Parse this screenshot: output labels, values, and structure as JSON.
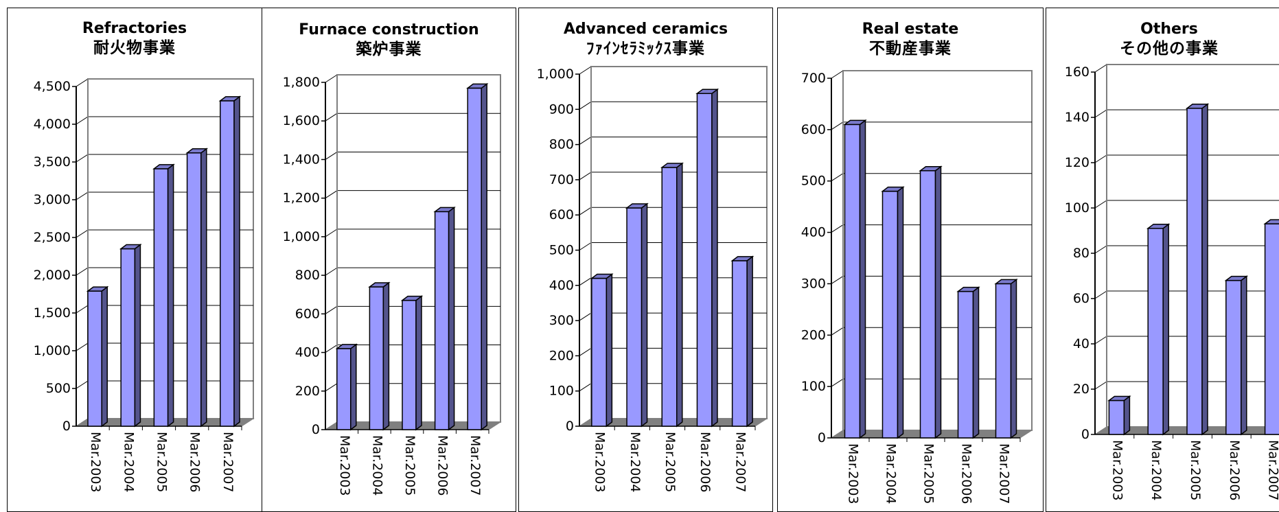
{
  "chart_data": [
    {
      "type": "bar",
      "title": "Refractories",
      "subtitle": "耐火物事業",
      "categories": [
        "Mar.2003",
        "Mar.2004",
        "Mar.2005",
        "Mar.2006",
        "Mar.2007"
      ],
      "values": [
        1790,
        2350,
        3410,
        3620,
        4310
      ],
      "ylim": [
        0,
        4500
      ],
      "yticks": [
        "0",
        "500",
        "1,000",
        "1,500",
        "2,000",
        "2,500",
        "3,000",
        "3,500",
        "4,000",
        "4,500"
      ],
      "grid": true,
      "bar_color": "#9999ff",
      "floor_color": "#808080"
    },
    {
      "type": "bar",
      "title": "Furnace construction",
      "subtitle": "築炉事業",
      "categories": [
        "Mar.2003",
        "Mar.2004",
        "Mar.2005",
        "Mar.2006",
        "Mar.2007"
      ],
      "values": [
        420,
        740,
        670,
        1130,
        1770
      ],
      "ylim": [
        0,
        1800
      ],
      "yticks": [
        "0",
        "200",
        "400",
        "600",
        "800",
        "1,000",
        "1,200",
        "1,400",
        "1,600",
        "1,800"
      ],
      "grid": true,
      "bar_color": "#9999ff",
      "floor_color": "#808080"
    },
    {
      "type": "bar",
      "title": "Advanced ceramics",
      "subtitle": "ﾌｧｲﾝｾﾗﾐｯｸｽ事業",
      "categories": [
        "Mar.2003",
        "Mar.2004",
        "Mar.2005",
        "Mar.2006",
        "Mar.2007"
      ],
      "values": [
        420,
        620,
        735,
        945,
        470
      ],
      "ylim": [
        0,
        1000
      ],
      "yticks": [
        "0",
        "100",
        "200",
        "300",
        "400",
        "500",
        "600",
        "700",
        "800",
        "900",
        "1,000"
      ],
      "grid": true,
      "bar_color": "#9999ff",
      "floor_color": "#808080"
    },
    {
      "type": "bar",
      "title": "Real estate",
      "subtitle": "不動産事業",
      "categories": [
        "Mar.2003",
        "Mar.2004",
        "Mar.2005",
        "Mar.2006",
        "Mar.2007"
      ],
      "values": [
        610,
        480,
        520,
        285,
        300
      ],
      "ylim": [
        0,
        700
      ],
      "yticks": [
        "0",
        "100",
        "200",
        "300",
        "400",
        "500",
        "600",
        "700"
      ],
      "grid": true,
      "bar_color": "#9999ff",
      "floor_color": "#808080"
    },
    {
      "type": "bar",
      "title": "Others",
      "subtitle": "その他の事業",
      "categories": [
        "Mar.2003",
        "Mar.2004",
        "Mar.2005",
        "Mar.2006",
        "Mar.2007"
      ],
      "values": [
        15,
        91,
        144,
        68,
        93
      ],
      "ylim": [
        0,
        160
      ],
      "yticks": [
        "0",
        "20",
        "40",
        "60",
        "80",
        "100",
        "120",
        "140",
        "160"
      ],
      "grid": true,
      "bar_color": "#9999ff",
      "floor_color": "#808080"
    }
  ]
}
